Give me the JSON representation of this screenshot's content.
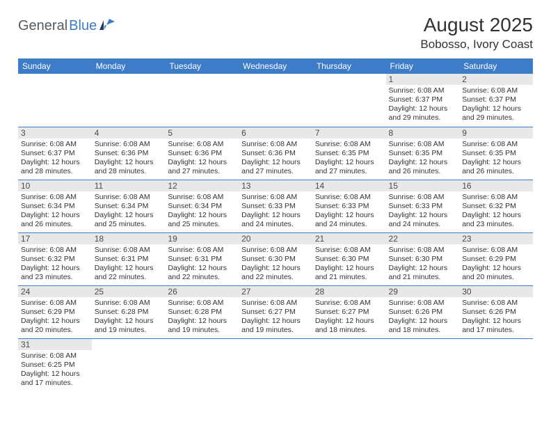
{
  "logo": {
    "part1": "General",
    "part2": "Blue"
  },
  "title": "August 2025",
  "location": "Bobosso, Ivory Coast",
  "colors": {
    "header_bg": "#3d7cc9",
    "header_text": "#ffffff",
    "daynum_bg": "#e8e8e8",
    "daynum_text": "#4a4a4a",
    "body_text": "#323232",
    "row_border": "#3d7cc9",
    "logo_gray": "#555b61",
    "logo_blue": "#3d7cc9",
    "page_bg": "#ffffff"
  },
  "fonts": {
    "title_size": 28,
    "location_size": 17,
    "header_size": 12,
    "daynum_size": 12,
    "info_size": 10.5
  },
  "weekdays": [
    "Sunday",
    "Monday",
    "Tuesday",
    "Wednesday",
    "Thursday",
    "Friday",
    "Saturday"
  ],
  "weeks": [
    [
      null,
      null,
      null,
      null,
      null,
      {
        "n": "1",
        "sr": "Sunrise: 6:08 AM",
        "ss": "Sunset: 6:37 PM",
        "d1": "Daylight: 12 hours",
        "d2": "and 29 minutes."
      },
      {
        "n": "2",
        "sr": "Sunrise: 6:08 AM",
        "ss": "Sunset: 6:37 PM",
        "d1": "Daylight: 12 hours",
        "d2": "and 29 minutes."
      }
    ],
    [
      {
        "n": "3",
        "sr": "Sunrise: 6:08 AM",
        "ss": "Sunset: 6:37 PM",
        "d1": "Daylight: 12 hours",
        "d2": "and 28 minutes."
      },
      {
        "n": "4",
        "sr": "Sunrise: 6:08 AM",
        "ss": "Sunset: 6:36 PM",
        "d1": "Daylight: 12 hours",
        "d2": "and 28 minutes."
      },
      {
        "n": "5",
        "sr": "Sunrise: 6:08 AM",
        "ss": "Sunset: 6:36 PM",
        "d1": "Daylight: 12 hours",
        "d2": "and 27 minutes."
      },
      {
        "n": "6",
        "sr": "Sunrise: 6:08 AM",
        "ss": "Sunset: 6:36 PM",
        "d1": "Daylight: 12 hours",
        "d2": "and 27 minutes."
      },
      {
        "n": "7",
        "sr": "Sunrise: 6:08 AM",
        "ss": "Sunset: 6:35 PM",
        "d1": "Daylight: 12 hours",
        "d2": "and 27 minutes."
      },
      {
        "n": "8",
        "sr": "Sunrise: 6:08 AM",
        "ss": "Sunset: 6:35 PM",
        "d1": "Daylight: 12 hours",
        "d2": "and 26 minutes."
      },
      {
        "n": "9",
        "sr": "Sunrise: 6:08 AM",
        "ss": "Sunset: 6:35 PM",
        "d1": "Daylight: 12 hours",
        "d2": "and 26 minutes."
      }
    ],
    [
      {
        "n": "10",
        "sr": "Sunrise: 6:08 AM",
        "ss": "Sunset: 6:34 PM",
        "d1": "Daylight: 12 hours",
        "d2": "and 26 minutes."
      },
      {
        "n": "11",
        "sr": "Sunrise: 6:08 AM",
        "ss": "Sunset: 6:34 PM",
        "d1": "Daylight: 12 hours",
        "d2": "and 25 minutes."
      },
      {
        "n": "12",
        "sr": "Sunrise: 6:08 AM",
        "ss": "Sunset: 6:34 PM",
        "d1": "Daylight: 12 hours",
        "d2": "and 25 minutes."
      },
      {
        "n": "13",
        "sr": "Sunrise: 6:08 AM",
        "ss": "Sunset: 6:33 PM",
        "d1": "Daylight: 12 hours",
        "d2": "and 24 minutes."
      },
      {
        "n": "14",
        "sr": "Sunrise: 6:08 AM",
        "ss": "Sunset: 6:33 PM",
        "d1": "Daylight: 12 hours",
        "d2": "and 24 minutes."
      },
      {
        "n": "15",
        "sr": "Sunrise: 6:08 AM",
        "ss": "Sunset: 6:33 PM",
        "d1": "Daylight: 12 hours",
        "d2": "and 24 minutes."
      },
      {
        "n": "16",
        "sr": "Sunrise: 6:08 AM",
        "ss": "Sunset: 6:32 PM",
        "d1": "Daylight: 12 hours",
        "d2": "and 23 minutes."
      }
    ],
    [
      {
        "n": "17",
        "sr": "Sunrise: 6:08 AM",
        "ss": "Sunset: 6:32 PM",
        "d1": "Daylight: 12 hours",
        "d2": "and 23 minutes."
      },
      {
        "n": "18",
        "sr": "Sunrise: 6:08 AM",
        "ss": "Sunset: 6:31 PM",
        "d1": "Daylight: 12 hours",
        "d2": "and 22 minutes."
      },
      {
        "n": "19",
        "sr": "Sunrise: 6:08 AM",
        "ss": "Sunset: 6:31 PM",
        "d1": "Daylight: 12 hours",
        "d2": "and 22 minutes."
      },
      {
        "n": "20",
        "sr": "Sunrise: 6:08 AM",
        "ss": "Sunset: 6:30 PM",
        "d1": "Daylight: 12 hours",
        "d2": "and 22 minutes."
      },
      {
        "n": "21",
        "sr": "Sunrise: 6:08 AM",
        "ss": "Sunset: 6:30 PM",
        "d1": "Daylight: 12 hours",
        "d2": "and 21 minutes."
      },
      {
        "n": "22",
        "sr": "Sunrise: 6:08 AM",
        "ss": "Sunset: 6:30 PM",
        "d1": "Daylight: 12 hours",
        "d2": "and 21 minutes."
      },
      {
        "n": "23",
        "sr": "Sunrise: 6:08 AM",
        "ss": "Sunset: 6:29 PM",
        "d1": "Daylight: 12 hours",
        "d2": "and 20 minutes."
      }
    ],
    [
      {
        "n": "24",
        "sr": "Sunrise: 6:08 AM",
        "ss": "Sunset: 6:29 PM",
        "d1": "Daylight: 12 hours",
        "d2": "and 20 minutes."
      },
      {
        "n": "25",
        "sr": "Sunrise: 6:08 AM",
        "ss": "Sunset: 6:28 PM",
        "d1": "Daylight: 12 hours",
        "d2": "and 19 minutes."
      },
      {
        "n": "26",
        "sr": "Sunrise: 6:08 AM",
        "ss": "Sunset: 6:28 PM",
        "d1": "Daylight: 12 hours",
        "d2": "and 19 minutes."
      },
      {
        "n": "27",
        "sr": "Sunrise: 6:08 AM",
        "ss": "Sunset: 6:27 PM",
        "d1": "Daylight: 12 hours",
        "d2": "and 19 minutes."
      },
      {
        "n": "28",
        "sr": "Sunrise: 6:08 AM",
        "ss": "Sunset: 6:27 PM",
        "d1": "Daylight: 12 hours",
        "d2": "and 18 minutes."
      },
      {
        "n": "29",
        "sr": "Sunrise: 6:08 AM",
        "ss": "Sunset: 6:26 PM",
        "d1": "Daylight: 12 hours",
        "d2": "and 18 minutes."
      },
      {
        "n": "30",
        "sr": "Sunrise: 6:08 AM",
        "ss": "Sunset: 6:26 PM",
        "d1": "Daylight: 12 hours",
        "d2": "and 17 minutes."
      }
    ],
    [
      {
        "n": "31",
        "sr": "Sunrise: 6:08 AM",
        "ss": "Sunset: 6:25 PM",
        "d1": "Daylight: 12 hours",
        "d2": "and 17 minutes."
      },
      null,
      null,
      null,
      null,
      null,
      null
    ]
  ]
}
